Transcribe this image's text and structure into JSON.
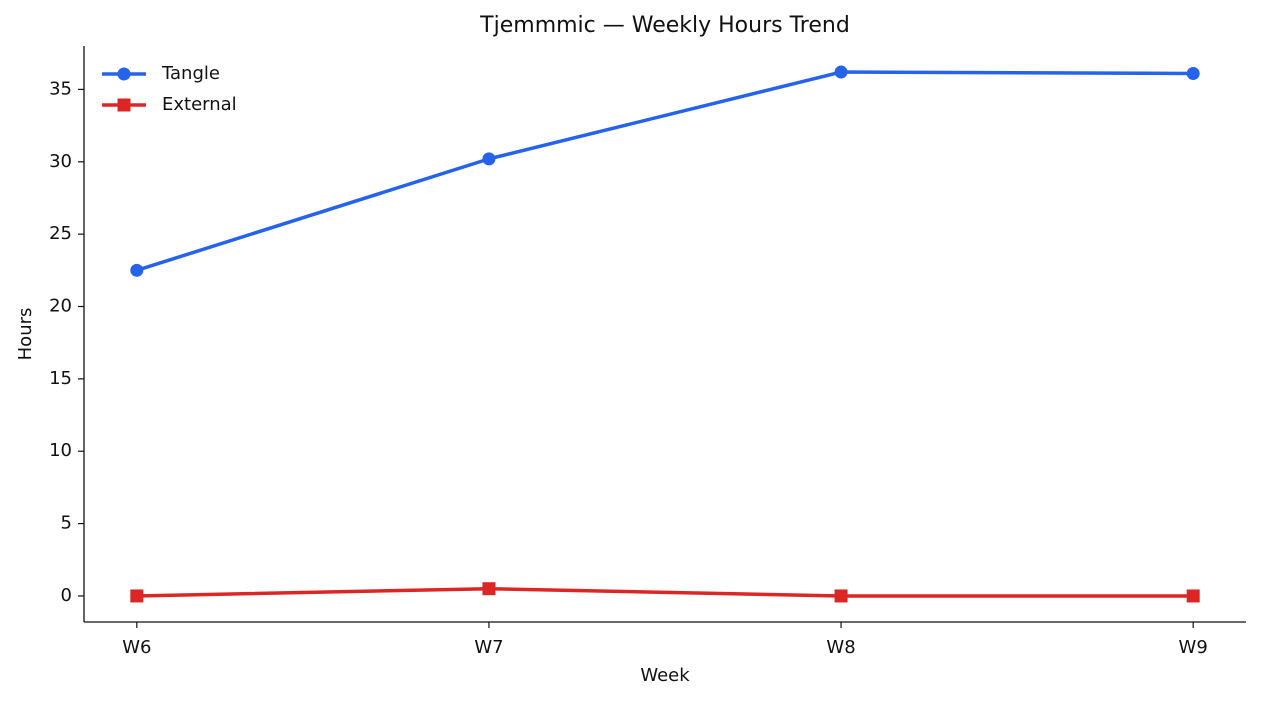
{
  "chart_data": {
    "type": "line",
    "title": "Tjemmmic — Weekly Hours Trend",
    "x_label": "Week",
    "y_label": "Hours",
    "categories": [
      "W6",
      "W7",
      "W8",
      "W9"
    ],
    "series": [
      {
        "name": "Tangle",
        "color": "#2563eb",
        "marker": "circle",
        "values": [
          22.5,
          30.2,
          36.2,
          36.1
        ]
      },
      {
        "name": "External",
        "color": "#dc2626",
        "marker": "square",
        "values": [
          0,
          0.5,
          0,
          0
        ]
      }
    ],
    "ylim": [
      -1.8,
      38.0
    ],
    "yticks": [
      0,
      5,
      10,
      15,
      20,
      25,
      30,
      35
    ],
    "grid": false,
    "legend": "upper left"
  }
}
